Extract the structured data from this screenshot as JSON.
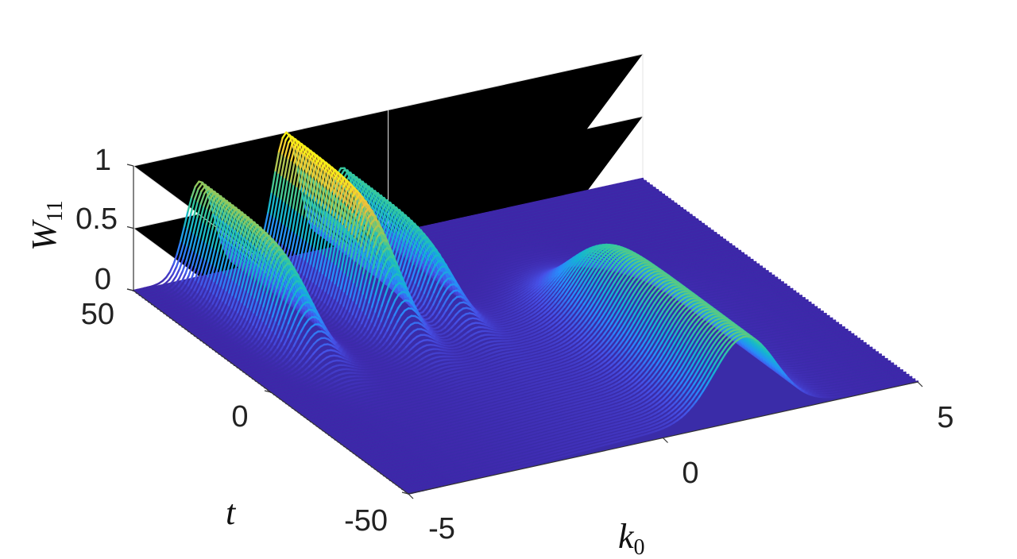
{
  "chart_data": {
    "type": "surface",
    "title": "",
    "xlabel": "k",
    "xlabel_sub": "0",
    "ylabel": "t",
    "zlabel": "W",
    "zlabel_sub": "11",
    "xlim": [
      -5,
      5
    ],
    "ylim": [
      -50,
      50
    ],
    "zlim": [
      0,
      1
    ],
    "x_ticks": [
      "-5",
      "0",
      "5"
    ],
    "y_ticks": [
      "-50",
      "0",
      "50"
    ],
    "z_ticks": [
      "0",
      "0.5",
      "1"
    ],
    "colormap": "parula",
    "colors": {
      "low": "#3e26a8",
      "mid": "#2eb7be",
      "high": "#f9fb0e"
    },
    "grid": true,
    "surface_description": {
      "t_min_profile": {
        "peak_k0": 1.6,
        "peak_value": 0.62,
        "width": 0.6
      },
      "t_max_profiles": [
        {
          "peak_k0": -3.7,
          "peak_value": 0.76,
          "width": 0.28
        },
        {
          "peak_k0": -2.0,
          "peak_value": 1.0,
          "width": 0.26
        },
        {
          "peak_k0": -0.9,
          "peak_value": 0.62,
          "width": 0.25
        }
      ],
      "transition_t": 10
    }
  }
}
